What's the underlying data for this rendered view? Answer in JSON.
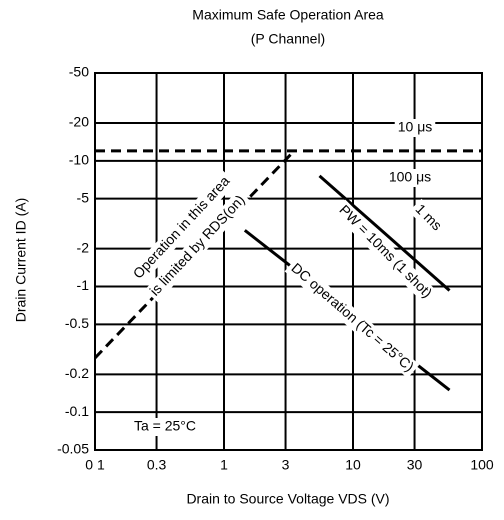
{
  "chart_data": {
    "type": "line",
    "title": "Maximum Safe Operation Area",
    "subtitle": "(P Channel)",
    "x_label": "Drain to Source Voltage  VDS  (V)",
    "y_label": "Drain Current  ID  (A)",
    "log_x": true,
    "log_y": true,
    "grid": true,
    "xlim": [
      0.1,
      100
    ],
    "ylim": [
      -0.05,
      -50
    ],
    "xticks": [
      {
        "value": 0.1,
        "label": "0 1"
      },
      0.3,
      1,
      3,
      10,
      30,
      100
    ],
    "yticks": [
      -50,
      -20,
      -10,
      -5,
      -2,
      -1,
      -0.5,
      -0.2,
      -0.1,
      -0.05
    ],
    "color": "#000000",
    "series": [
      {
        "x": [
          0.1,
          3.5
        ],
        "values": [
          -0.27,
          -12
        ],
        "dash": true
      },
      {
        "x": [
          0.1,
          100
        ],
        "values": [
          -12,
          -12
        ],
        "dash": true
      },
      {
        "x": [
          1.45,
          56
        ],
        "values": [
          -2.8,
          -0.15
        ],
        "dash": false
      },
      {
        "x": [
          5.5,
          56
        ],
        "values": [
          -7.6,
          -0.93
        ],
        "dash": false
      }
    ],
    "annotations": [
      "10 μs",
      "100 μs",
      "1 ms",
      "PW = 10ms (1 shot)",
      "DC operation (Tc = 25°C)",
      "Operation in this area",
      "is limited by RDS(on)",
      "Ta = 25°C"
    ]
  }
}
